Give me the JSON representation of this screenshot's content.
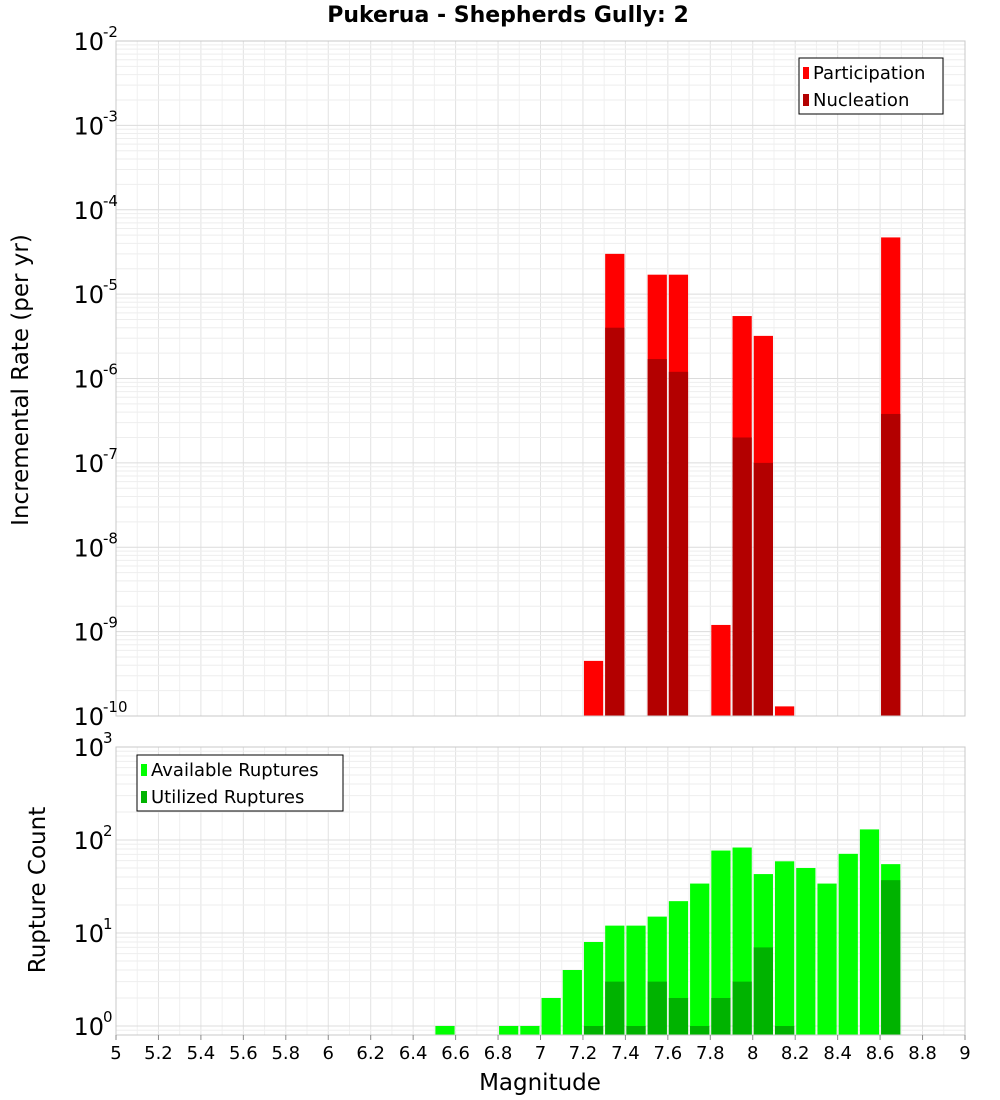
{
  "title": "Pukerua - Shepherds Gully: 2",
  "colors": {
    "participation": "#ff0000",
    "nucleation": "#b30000",
    "available": "#00ff00",
    "utilized": "#00b300",
    "grid": "#e8e8e8",
    "frame": "#c8c8c8"
  },
  "chart_data": [
    {
      "type": "bar",
      "panel": "top",
      "ylabel": "Incremental Rate (per yr)",
      "xlabel": "",
      "yscale": "log",
      "ylim": [
        1e-10,
        0.01
      ],
      "xlim": [
        5,
        9
      ],
      "ytick_labels": [
        {
          "base": "10",
          "exp": "-2",
          "value": 0.01
        },
        {
          "base": "10",
          "exp": "-3",
          "value": 0.001
        },
        {
          "base": "10",
          "exp": "-4",
          "value": 0.0001
        },
        {
          "base": "10",
          "exp": "-5",
          "value": 1e-05
        },
        {
          "base": "10",
          "exp": "-6",
          "value": 1e-06
        },
        {
          "base": "10",
          "exp": "-7",
          "value": 1e-07
        },
        {
          "base": "10",
          "exp": "-8",
          "value": 1e-08
        },
        {
          "base": "10",
          "exp": "-9",
          "value": 1e-09
        },
        {
          "base": "10",
          "exp": "-10",
          "value": 1e-10
        }
      ],
      "legend": [
        "Participation",
        "Nucleation"
      ],
      "legend_position": "top-right",
      "series": [
        {
          "name": "Participation",
          "x": [
            7.25,
            7.35,
            7.55,
            7.65,
            7.85,
            7.95,
            8.05,
            8.15,
            8.65
          ],
          "values": [
            4.5e-10,
            3e-05,
            1.7e-05,
            1.7e-05,
            1.2e-09,
            5.5e-06,
            3.2e-06,
            1.3e-10,
            4.7e-05
          ]
        },
        {
          "name": "Nucleation",
          "x": [
            7.35,
            7.55,
            7.65,
            7.95,
            8.05,
            8.65
          ],
          "values": [
            4e-06,
            1.7e-06,
            1.2e-06,
            2e-07,
            1e-07,
            3.8e-07
          ]
        }
      ]
    },
    {
      "type": "bar",
      "panel": "bottom",
      "ylabel": "Rupture Count",
      "xlabel": "Magnitude",
      "yscale": "log",
      "ylim": [
        0.8,
        1000
      ],
      "xlim": [
        5,
        9
      ],
      "ytick_labels": [
        {
          "base": "10",
          "exp": "3",
          "value": 1000
        },
        {
          "base": "10",
          "exp": "2",
          "value": 100
        },
        {
          "base": "10",
          "exp": "1",
          "value": 10
        },
        {
          "base": "10",
          "exp": "0",
          "value": 1
        }
      ],
      "xtick_labels": [
        "5",
        "5.2",
        "5.4",
        "5.6",
        "5.8",
        "6",
        "6.2",
        "6.4",
        "6.6",
        "6.8",
        "7",
        "7.2",
        "7.4",
        "7.6",
        "7.8",
        "8",
        "8.2",
        "8.4",
        "8.6",
        "8.8",
        "9"
      ],
      "legend": [
        "Available Ruptures",
        "Utilized Ruptures"
      ],
      "legend_position": "top-left",
      "series": [
        {
          "name": "Available Ruptures",
          "x": [
            6.55,
            6.85,
            6.95,
            7.05,
            7.15,
            7.25,
            7.35,
            7.45,
            7.55,
            7.65,
            7.75,
            7.85,
            7.95,
            8.05,
            8.15,
            8.25,
            8.35,
            8.45,
            8.55,
            8.65
          ],
          "values": [
            1,
            1,
            1,
            2,
            4,
            8,
            12,
            12,
            15,
            22,
            34,
            77,
            83,
            43,
            59,
            50,
            34,
            71,
            130,
            55
          ]
        },
        {
          "name": "Utilized Ruptures",
          "x": [
            7.25,
            7.35,
            7.45,
            7.55,
            7.65,
            7.75,
            7.85,
            7.95,
            8.05,
            8.15,
            8.65
          ],
          "values": [
            1,
            3,
            1,
            3,
            2,
            1,
            2,
            3,
            7,
            1,
            37
          ]
        }
      ]
    }
  ]
}
